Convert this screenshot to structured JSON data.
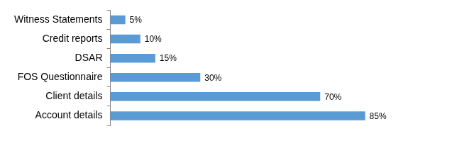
{
  "chart_data": {
    "type": "bar",
    "orientation": "horizontal",
    "categories": [
      "Witness Statements",
      "Credit reports",
      "DSAR",
      "FOS Questionnaire",
      "Client details",
      "Account details"
    ],
    "values": [
      5,
      10,
      15,
      30,
      70,
      85
    ],
    "value_labels": [
      "5%",
      "10%",
      "15%",
      "30%",
      "70%",
      "85%"
    ],
    "color": "#5b9bd5",
    "xlim": [
      0,
      100
    ],
    "grid": false,
    "data_labels": true,
    "tick_labels": "y"
  }
}
